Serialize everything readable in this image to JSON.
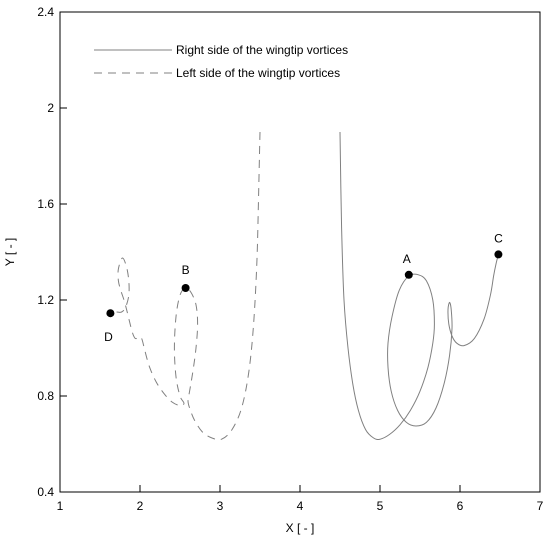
{
  "chart_data": {
    "type": "line",
    "xlabel": "X [ - ]",
    "ylabel": "Y [ - ]",
    "xlim": [
      1,
      7
    ],
    "ylim": [
      0.4,
      2.4
    ],
    "xticks": [
      "1",
      "2",
      "3",
      "4",
      "5",
      "6",
      "7"
    ],
    "yticks": [
      "0.4",
      "0.8",
      "1.2",
      "1.6",
      "2",
      "2.4"
    ],
    "ytick_values": [
      0.4,
      0.8,
      1.2,
      1.6,
      2.0,
      2.4
    ],
    "grid": false,
    "legend_position": "top-left",
    "series": [
      {
        "name": "Right side of the wingtip vortices",
        "line_style": "solid",
        "color": "#808080",
        "points": [
          [
            4.5,
            1.9
          ],
          [
            4.52,
            1.5
          ],
          [
            4.55,
            1.2
          ],
          [
            4.6,
            1.0
          ],
          [
            4.66,
            0.85
          ],
          [
            4.73,
            0.74
          ],
          [
            4.82,
            0.66
          ],
          [
            4.92,
            0.625
          ],
          [
            5.0,
            0.62
          ],
          [
            5.12,
            0.64
          ],
          [
            5.25,
            0.68
          ],
          [
            5.38,
            0.74
          ],
          [
            5.5,
            0.82
          ],
          [
            5.6,
            0.92
          ],
          [
            5.66,
            1.02
          ],
          [
            5.68,
            1.1
          ],
          [
            5.66,
            1.2
          ],
          [
            5.58,
            1.28
          ],
          [
            5.48,
            1.305
          ],
          [
            5.36,
            1.3
          ],
          [
            5.24,
            1.24
          ],
          [
            5.15,
            1.13
          ],
          [
            5.1,
            1.02
          ],
          [
            5.1,
            0.92
          ],
          [
            5.14,
            0.82
          ],
          [
            5.22,
            0.74
          ],
          [
            5.33,
            0.69
          ],
          [
            5.45,
            0.675
          ],
          [
            5.58,
            0.69
          ],
          [
            5.7,
            0.75
          ],
          [
            5.8,
            0.85
          ],
          [
            5.87,
            0.97
          ],
          [
            5.9,
            1.08
          ],
          [
            5.89,
            1.16
          ],
          [
            5.87,
            1.19
          ],
          [
            5.85,
            1.16
          ],
          [
            5.86,
            1.1
          ],
          [
            5.9,
            1.05
          ],
          [
            5.96,
            1.02
          ],
          [
            6.05,
            1.01
          ],
          [
            6.18,
            1.04
          ],
          [
            6.3,
            1.12
          ],
          [
            6.38,
            1.22
          ],
          [
            6.42,
            1.3
          ],
          [
            6.45,
            1.35
          ],
          [
            6.48,
            1.39
          ]
        ]
      },
      {
        "name": "Left side of the wingtip vortices",
        "line_style": "dashed",
        "color": "#808080",
        "points": [
          [
            3.5,
            1.9
          ],
          [
            3.48,
            1.6
          ],
          [
            3.46,
            1.35
          ],
          [
            3.42,
            1.1
          ],
          [
            3.36,
            0.9
          ],
          [
            3.27,
            0.75
          ],
          [
            3.15,
            0.66
          ],
          [
            3.02,
            0.62
          ],
          [
            2.9,
            0.625
          ],
          [
            2.78,
            0.65
          ],
          [
            2.68,
            0.7
          ],
          [
            2.62,
            0.75
          ],
          [
            2.6,
            0.78
          ],
          [
            2.62,
            0.82
          ],
          [
            2.66,
            0.9
          ],
          [
            2.7,
            1.0
          ],
          [
            2.72,
            1.1
          ],
          [
            2.7,
            1.18
          ],
          [
            2.64,
            1.23
          ],
          [
            2.57,
            1.25
          ],
          [
            2.5,
            1.22
          ],
          [
            2.45,
            1.13
          ],
          [
            2.43,
            1.0
          ],
          [
            2.45,
            0.88
          ],
          [
            2.5,
            0.8
          ],
          [
            2.55,
            0.77
          ],
          [
            2.5,
            0.76
          ],
          [
            2.4,
            0.775
          ],
          [
            2.3,
            0.81
          ],
          [
            2.2,
            0.86
          ],
          [
            2.12,
            0.92
          ],
          [
            2.06,
            0.99
          ],
          [
            2.02,
            1.04
          ],
          [
            1.98,
            1.045
          ],
          [
            1.94,
            1.04
          ],
          [
            1.9,
            1.07
          ],
          [
            1.84,
            1.15
          ],
          [
            1.8,
            1.2
          ],
          [
            1.76,
            1.24
          ],
          [
            1.73,
            1.28
          ],
          [
            1.73,
            1.33
          ],
          [
            1.78,
            1.375
          ],
          [
            1.83,
            1.34
          ],
          [
            1.86,
            1.28
          ],
          [
            1.86,
            1.22
          ],
          [
            1.82,
            1.17
          ],
          [
            1.77,
            1.15
          ],
          [
            1.7,
            1.15
          ],
          [
            1.63,
            1.15
          ]
        ]
      }
    ],
    "annotations": [
      {
        "label": "A",
        "x": 5.36,
        "y": 1.305
      },
      {
        "label": "B",
        "x": 2.57,
        "y": 1.25
      },
      {
        "label": "C",
        "x": 6.48,
        "y": 1.39
      },
      {
        "label": "D",
        "x": 1.63,
        "y": 1.145
      }
    ]
  }
}
